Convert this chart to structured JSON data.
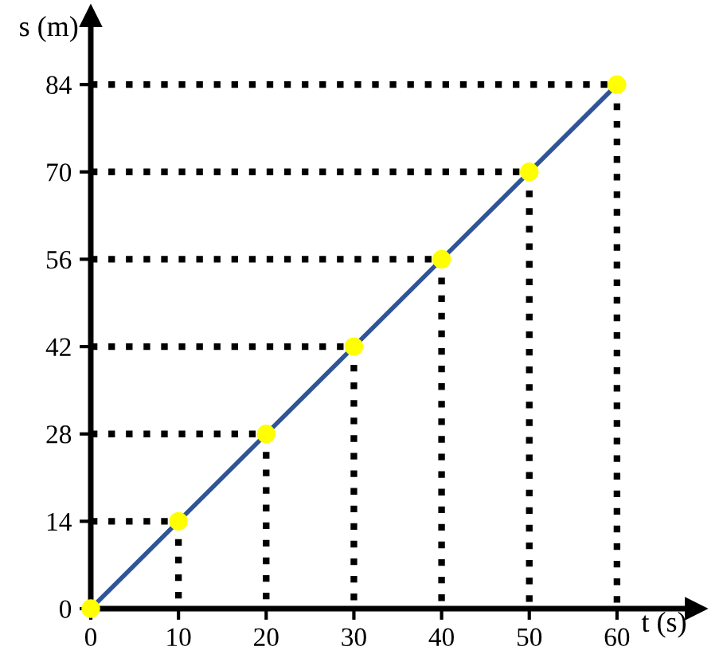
{
  "chart_data": {
    "type": "line",
    "xlabel": "t (s)",
    "ylabel": "s (m)",
    "xlim": [
      0,
      69
    ],
    "ylim": [
      0,
      95
    ],
    "xticks": [
      0,
      10,
      20,
      30,
      40,
      50,
      60
    ],
    "yticks": [
      0,
      14,
      28,
      42,
      56,
      70,
      84
    ],
    "grid": false,
    "legend": false,
    "series": [
      {
        "color": "#2f5597",
        "x": [
          0,
          60
        ],
        "values": [
          0,
          84
        ],
        "marker": "none",
        "line_style": "solid"
      },
      {
        "color": "#000000",
        "x": [
          0,
          10,
          10
        ],
        "values": [
          14,
          14,
          0
        ],
        "marker": "none",
        "line_style": "dotted"
      },
      {
        "color": "#000000",
        "x": [
          0,
          20,
          20
        ],
        "values": [
          28,
          28,
          0
        ],
        "marker": "none",
        "line_style": "dotted"
      },
      {
        "color": "#000000",
        "x": [
          0,
          30,
          30
        ],
        "values": [
          42,
          42,
          0
        ],
        "marker": "none",
        "line_style": "dotted"
      },
      {
        "color": "#000000",
        "x": [
          0,
          40,
          40
        ],
        "values": [
          56,
          56,
          0
        ],
        "marker": "none",
        "line_style": "dotted"
      },
      {
        "color": "#000000",
        "x": [
          0,
          50,
          50
        ],
        "values": [
          70,
          70,
          0
        ],
        "marker": "none",
        "line_style": "dotted"
      },
      {
        "color": "#000000",
        "x": [
          0,
          60,
          60
        ],
        "values": [
          84,
          84,
          0
        ],
        "marker": "none",
        "line_style": "dotted"
      },
      {
        "type": "scatter",
        "color": "#ffff00",
        "x": [
          0,
          10,
          20,
          30,
          40,
          50,
          60
        ],
        "values": [
          0,
          14,
          28,
          42,
          56,
          70,
          84
        ],
        "marker": "circle"
      }
    ]
  }
}
